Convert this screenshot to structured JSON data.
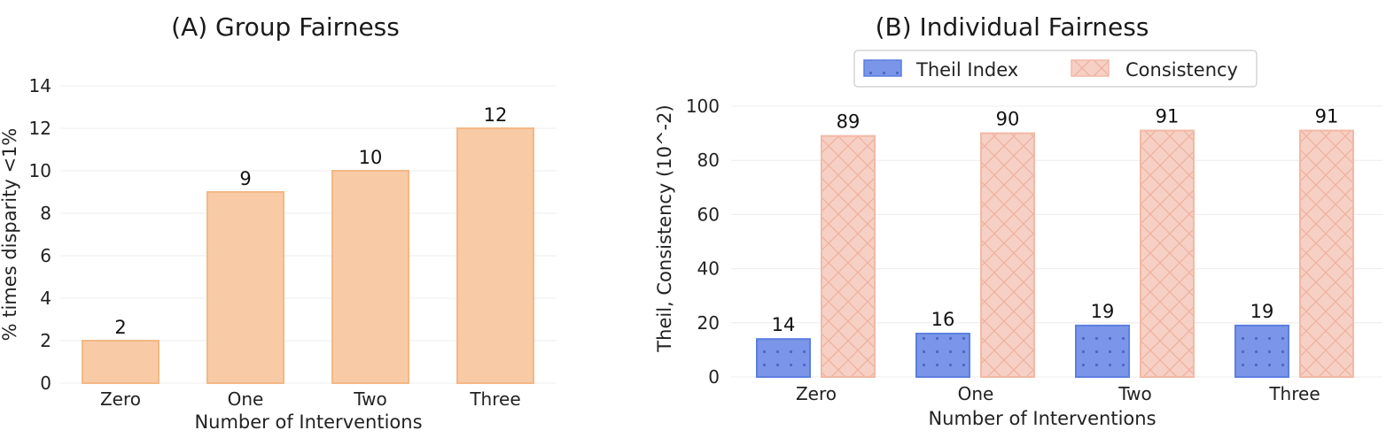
{
  "chart_data": [
    {
      "type": "bar",
      "title": "(A) Group Fairness",
      "xlabel": "Number of Interventions",
      "ylabel": "% times disparity <1%",
      "categories": [
        "Zero",
        "One",
        "Two",
        "Three"
      ],
      "values": [
        2,
        9,
        10,
        12
      ],
      "ylim": [
        0,
        14
      ],
      "yticks": [
        0,
        2,
        4,
        6,
        8,
        10,
        12,
        14
      ],
      "grid": true,
      "color": "#f8cba6",
      "edge_color": "#f3b886"
    },
    {
      "type": "bar",
      "title": "(B) Individual Fairness",
      "xlabel": "Number of Interventions",
      "ylabel": "Theil, Consistency (10^-2)",
      "categories": [
        "Zero",
        "One",
        "Two",
        "Three"
      ],
      "series": [
        {
          "name": "Theil Index",
          "values": [
            14,
            16,
            19,
            19
          ],
          "color": "#7b96e8",
          "edge_color": "#5b7fe0",
          "pattern": "dots"
        },
        {
          "name": "Consistency",
          "values": [
            89,
            90,
            91,
            91
          ],
          "color": "#f6d0c4",
          "edge_color": "#f2b8a6",
          "pattern": "crosshatch"
        }
      ],
      "ylim": [
        0,
        100
      ],
      "yticks": [
        0,
        20,
        40,
        60,
        80,
        100
      ],
      "grid": true,
      "legend": "top-center"
    }
  ]
}
